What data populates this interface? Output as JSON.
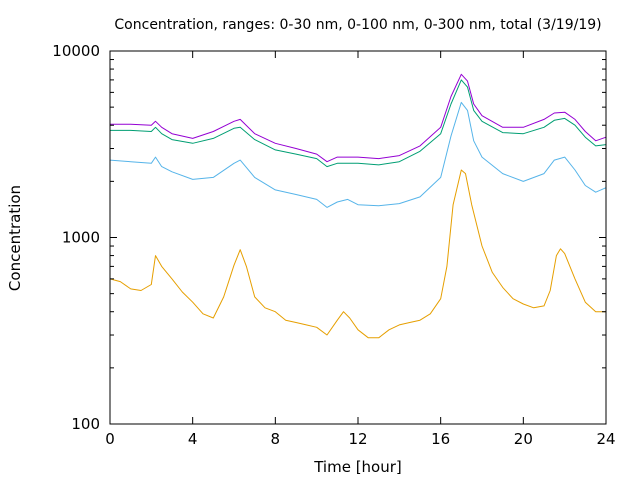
{
  "chart_data": {
    "type": "line",
    "title": "Concentration, ranges: 0-30 nm, 0-100 nm, 0-300 nm, total (3/19/19)",
    "xlabel": "Time [hour]",
    "ylabel": "Concentration",
    "xlim": [
      0,
      24
    ],
    "ylim": [
      100,
      10000
    ],
    "yscale": "log",
    "grid": false,
    "legend": "none",
    "x_ticks": [
      0,
      4,
      8,
      12,
      16,
      20,
      24
    ],
    "y_ticks": [
      100,
      1000,
      10000
    ],
    "series": [
      {
        "color": "#e69f00",
        "points": [
          [
            0,
            600
          ],
          [
            0.5,
            580
          ],
          [
            1,
            530
          ],
          [
            1.5,
            520
          ],
          [
            2,
            560
          ],
          [
            2.2,
            800
          ],
          [
            2.5,
            700
          ],
          [
            3,
            600
          ],
          [
            3.5,
            510
          ],
          [
            4,
            450
          ],
          [
            4.5,
            390
          ],
          [
            5,
            370
          ],
          [
            5.5,
            480
          ],
          [
            6,
            710
          ],
          [
            6.3,
            860
          ],
          [
            6.6,
            700
          ],
          [
            7,
            480
          ],
          [
            7.5,
            420
          ],
          [
            8,
            400
          ],
          [
            8.5,
            360
          ],
          [
            9,
            350
          ],
          [
            9.5,
            340
          ],
          [
            10,
            330
          ],
          [
            10.5,
            300
          ],
          [
            11,
            360
          ],
          [
            11.3,
            400
          ],
          [
            11.6,
            370
          ],
          [
            12,
            320
          ],
          [
            12.5,
            290
          ],
          [
            13,
            290
          ],
          [
            13.5,
            320
          ],
          [
            14,
            340
          ],
          [
            14.5,
            350
          ],
          [
            15,
            360
          ],
          [
            15.5,
            390
          ],
          [
            16,
            470
          ],
          [
            16.3,
            700
          ],
          [
            16.6,
            1500
          ],
          [
            17,
            2300
          ],
          [
            17.2,
            2200
          ],
          [
            17.5,
            1500
          ],
          [
            18,
            900
          ],
          [
            18.5,
            650
          ],
          [
            19,
            540
          ],
          [
            19.5,
            470
          ],
          [
            20,
            440
          ],
          [
            20.5,
            420
          ],
          [
            21,
            430
          ],
          [
            21.3,
            520
          ],
          [
            21.6,
            800
          ],
          [
            21.8,
            870
          ],
          [
            22,
            820
          ],
          [
            22.5,
            600
          ],
          [
            23,
            450
          ],
          [
            23.5,
            400
          ],
          [
            24,
            400
          ]
        ]
      },
      {
        "color": "#56b4e9",
        "points": [
          [
            0,
            2600
          ],
          [
            1,
            2550
          ],
          [
            2,
            2500
          ],
          [
            2.2,
            2700
          ],
          [
            2.5,
            2400
          ],
          [
            3,
            2250
          ],
          [
            4,
            2050
          ],
          [
            5,
            2100
          ],
          [
            6,
            2500
          ],
          [
            6.3,
            2600
          ],
          [
            7,
            2100
          ],
          [
            8,
            1800
          ],
          [
            9,
            1700
          ],
          [
            10,
            1600
          ],
          [
            10.5,
            1450
          ],
          [
            11,
            1550
          ],
          [
            11.5,
            1600
          ],
          [
            12,
            1500
          ],
          [
            13,
            1480
          ],
          [
            14,
            1520
          ],
          [
            15,
            1650
          ],
          [
            16,
            2100
          ],
          [
            16.5,
            3500
          ],
          [
            17,
            5300
          ],
          [
            17.3,
            4800
          ],
          [
            17.6,
            3300
          ],
          [
            18,
            2700
          ],
          [
            19,
            2200
          ],
          [
            20,
            2000
          ],
          [
            21,
            2200
          ],
          [
            21.5,
            2600
          ],
          [
            22,
            2700
          ],
          [
            22.5,
            2300
          ],
          [
            23,
            1900
          ],
          [
            23.5,
            1750
          ],
          [
            24,
            1850
          ]
        ]
      },
      {
        "color": "#009e73",
        "points": [
          [
            0,
            3750
          ],
          [
            1,
            3750
          ],
          [
            2,
            3700
          ],
          [
            2.2,
            3900
          ],
          [
            2.5,
            3600
          ],
          [
            3,
            3350
          ],
          [
            4,
            3200
          ],
          [
            5,
            3400
          ],
          [
            6,
            3850
          ],
          [
            6.3,
            3900
          ],
          [
            7,
            3350
          ],
          [
            8,
            2950
          ],
          [
            9,
            2800
          ],
          [
            10,
            2650
          ],
          [
            10.5,
            2400
          ],
          [
            11,
            2500
          ],
          [
            12,
            2500
          ],
          [
            13,
            2450
          ],
          [
            14,
            2550
          ],
          [
            15,
            2900
          ],
          [
            16,
            3600
          ],
          [
            16.5,
            5200
          ],
          [
            17,
            7000
          ],
          [
            17.3,
            6400
          ],
          [
            17.6,
            4800
          ],
          [
            18,
            4200
          ],
          [
            19,
            3650
          ],
          [
            20,
            3600
          ],
          [
            21,
            3900
          ],
          [
            21.5,
            4250
          ],
          [
            22,
            4350
          ],
          [
            22.5,
            4000
          ],
          [
            23,
            3450
          ],
          [
            23.5,
            3100
          ],
          [
            24,
            3150
          ]
        ]
      },
      {
        "color": "#9400d3",
        "points": [
          [
            0,
            4050
          ],
          [
            1,
            4050
          ],
          [
            2,
            4000
          ],
          [
            2.2,
            4200
          ],
          [
            2.5,
            3900
          ],
          [
            3,
            3600
          ],
          [
            4,
            3400
          ],
          [
            5,
            3700
          ],
          [
            6,
            4200
          ],
          [
            6.3,
            4300
          ],
          [
            7,
            3600
          ],
          [
            8,
            3200
          ],
          [
            9,
            3000
          ],
          [
            10,
            2800
          ],
          [
            10.5,
            2550
          ],
          [
            11,
            2700
          ],
          [
            12,
            2700
          ],
          [
            13,
            2650
          ],
          [
            14,
            2750
          ],
          [
            15,
            3100
          ],
          [
            16,
            3900
          ],
          [
            16.5,
            5700
          ],
          [
            17,
            7500
          ],
          [
            17.3,
            6900
          ],
          [
            17.6,
            5200
          ],
          [
            18,
            4500
          ],
          [
            19,
            3900
          ],
          [
            20,
            3900
          ],
          [
            21,
            4300
          ],
          [
            21.5,
            4650
          ],
          [
            22,
            4700
          ],
          [
            22.5,
            4300
          ],
          [
            23,
            3700
          ],
          [
            23.5,
            3300
          ],
          [
            24,
            3450
          ]
        ]
      }
    ]
  }
}
